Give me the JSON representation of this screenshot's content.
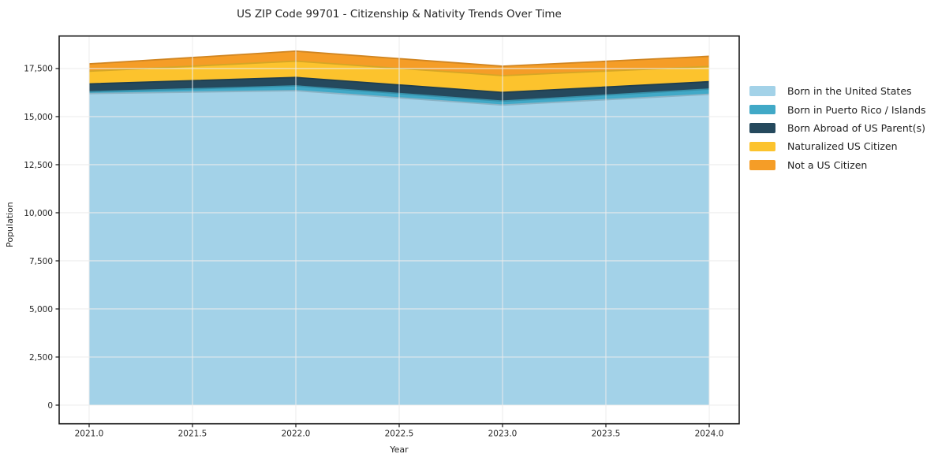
{
  "chart_data": {
    "type": "area",
    "stacked": true,
    "title": "US ZIP Code 99701 - Citizenship & Nativity Trends Over Time",
    "xlabel": "Year",
    "ylabel": "Population",
    "x": [
      2021,
      2022,
      2023,
      2024
    ],
    "series": [
      {
        "name": "Born in the United States",
        "color": "#a3d2e8",
        "values": [
          16200,
          16350,
          15600,
          16160
        ]
      },
      {
        "name": "Born in Puerto Rico / Islands",
        "color": "#41a9c7",
        "values": [
          90,
          245,
          205,
          270
        ]
      },
      {
        "name": "Born Abroad of US Parent(s)",
        "color": "#25495d",
        "values": [
          410,
          440,
          450,
          385
        ]
      },
      {
        "name": "Naturalized US Citizen",
        "color": "#fcc32d",
        "values": [
          660,
          850,
          875,
          790
        ]
      },
      {
        "name": "Not a US Citizen",
        "color": "#f59d27",
        "values": [
          380,
          520,
          490,
          530
        ]
      }
    ],
    "xticks": [
      {
        "v": 2021.0,
        "label": "2021.0"
      },
      {
        "v": 2021.5,
        "label": "2021.5"
      },
      {
        "v": 2022.0,
        "label": "2022.0"
      },
      {
        "v": 2022.5,
        "label": "2022.5"
      },
      {
        "v": 2023.0,
        "label": "2023.0"
      },
      {
        "v": 2023.5,
        "label": "2023.5"
      },
      {
        "v": 2024.0,
        "label": "2024.0"
      }
    ],
    "yticks": [
      {
        "v": 0,
        "label": "0"
      },
      {
        "v": 2500,
        "label": "2,500"
      },
      {
        "v": 5000,
        "label": "5,000"
      },
      {
        "v": 7500,
        "label": "7,500"
      },
      {
        "v": 10000,
        "label": "10,000"
      },
      {
        "v": 12500,
        "label": "12,500"
      },
      {
        "v": 15000,
        "label": "15,000"
      },
      {
        "v": 17500,
        "label": "17,500"
      }
    ],
    "xlim": [
      2020.855,
      2024.145
    ],
    "ylim": [
      -971,
      19190
    ],
    "grid": true,
    "grid_color": "#ececec",
    "frame_color": "#1a1a1a",
    "tick_label_color": "#262626",
    "legend_position": "right-outside"
  }
}
